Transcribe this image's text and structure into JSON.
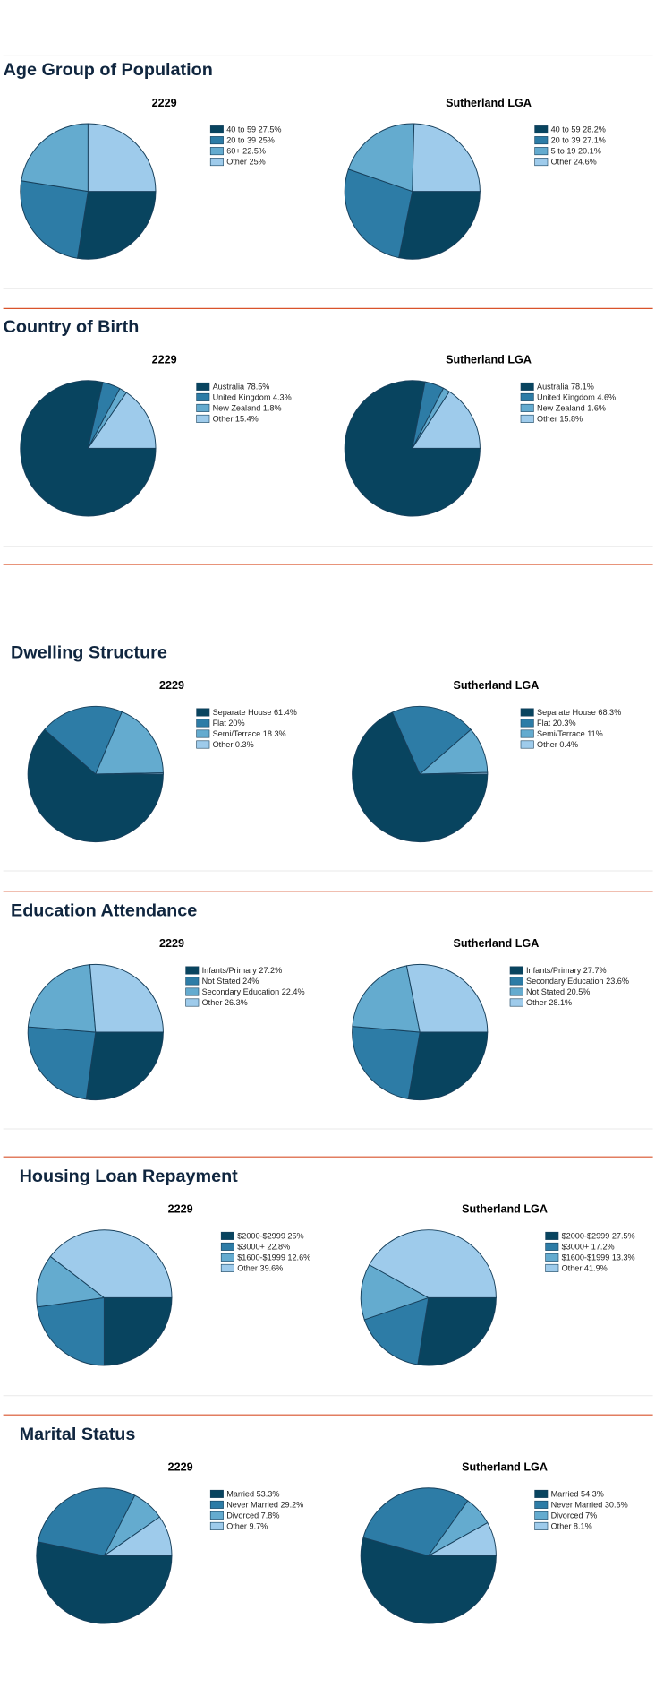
{
  "sections": [
    {
      "title": "Age Group of Population"
    },
    {
      "title": "Country of Birth"
    },
    {
      "title": "Dwelling Structure"
    },
    {
      "title": "Education Attendance"
    },
    {
      "title": "Housing Loan Repayment"
    },
    {
      "title": "Marital Status"
    }
  ],
  "chart_data": [
    {
      "type": "pie",
      "title": "2229",
      "categories": [
        "40 to 59",
        "20 to 39",
        "60+",
        "Other"
      ],
      "values": [
        27.5,
        25,
        22.5,
        25
      ],
      "value_labels": [
        "27.5%",
        "25%",
        "22.5%",
        "25%"
      ],
      "colors": [
        "#08445f",
        "#2d7ca6",
        "#64abcf",
        "#9ecbeb"
      ]
    },
    {
      "type": "pie",
      "title": "Sutherland LGA",
      "categories": [
        "40 to 59",
        "20 to 39",
        "5 to 19",
        "Other"
      ],
      "values": [
        28.2,
        27.1,
        20.1,
        24.6
      ],
      "value_labels": [
        "28.2%",
        "27.1%",
        "20.1%",
        "24.6%"
      ],
      "colors": [
        "#08445f",
        "#2d7ca6",
        "#64abcf",
        "#9ecbeb"
      ]
    },
    {
      "type": "pie",
      "title": "2229",
      "categories": [
        "Australia",
        "United Kingdom",
        "New Zealand",
        "Other"
      ],
      "values": [
        78.5,
        4.3,
        1.8,
        15.4
      ],
      "value_labels": [
        "78.5%",
        "4.3%",
        "1.8%",
        "15.4%"
      ],
      "colors": [
        "#08445f",
        "#2d7ca6",
        "#64abcf",
        "#9ecbeb"
      ]
    },
    {
      "type": "pie",
      "title": "Sutherland LGA",
      "categories": [
        "Australia",
        "United Kingdom",
        "New Zealand",
        "Other"
      ],
      "values": [
        78.1,
        4.6,
        1.6,
        15.8
      ],
      "value_labels": [
        "78.1%",
        "4.6%",
        "1.6%",
        "15.8%"
      ],
      "colors": [
        "#08445f",
        "#2d7ca6",
        "#64abcf",
        "#9ecbeb"
      ]
    },
    {
      "type": "pie",
      "title": "2229",
      "categories": [
        "Separate House",
        "Flat",
        "Semi/Terrace",
        "Other"
      ],
      "values": [
        61.4,
        20,
        18.3,
        0.3
      ],
      "value_labels": [
        "61.4%",
        "20%",
        "18.3%",
        "0.3%"
      ],
      "colors": [
        "#08445f",
        "#2d7ca6",
        "#64abcf",
        "#9ecbeb"
      ]
    },
    {
      "type": "pie",
      "title": "Sutherland LGA",
      "categories": [
        "Separate House",
        "Flat",
        "Semi/Terrace",
        "Other"
      ],
      "values": [
        68.3,
        20.3,
        11,
        0.4
      ],
      "value_labels": [
        "68.3%",
        "20.3%",
        "11%",
        "0.4%"
      ],
      "colors": [
        "#08445f",
        "#2d7ca6",
        "#64abcf",
        "#9ecbeb"
      ]
    },
    {
      "type": "pie",
      "title": "2229",
      "categories": [
        "Infants/Primary",
        "Not Stated",
        "Secondary Education",
        "Other"
      ],
      "values": [
        27.2,
        24,
        22.4,
        26.3
      ],
      "value_labels": [
        "27.2%",
        "24%",
        "22.4%",
        "26.3%"
      ],
      "colors": [
        "#08445f",
        "#2d7ca6",
        "#64abcf",
        "#9ecbeb"
      ]
    },
    {
      "type": "pie",
      "title": "Sutherland LGA",
      "categories": [
        "Infants/Primary",
        "Secondary Education",
        "Not Stated",
        "Other"
      ],
      "values": [
        27.7,
        23.6,
        20.5,
        28.1
      ],
      "value_labels": [
        "27.7%",
        "23.6%",
        "20.5%",
        "28.1%"
      ],
      "colors": [
        "#08445f",
        "#2d7ca6",
        "#64abcf",
        "#9ecbeb"
      ]
    },
    {
      "type": "pie",
      "title": "2229",
      "categories": [
        "$2000-$2999",
        "$3000+",
        "$1600-$1999",
        "Other"
      ],
      "values": [
        25,
        22.8,
        12.6,
        39.6
      ],
      "value_labels": [
        "25%",
        "22.8%",
        "12.6%",
        "39.6%"
      ],
      "colors": [
        "#08445f",
        "#2d7ca6",
        "#64abcf",
        "#9ecbeb"
      ]
    },
    {
      "type": "pie",
      "title": "Sutherland LGA",
      "categories": [
        "$2000-$2999",
        "$3000+",
        "$1600-$1999",
        "Other"
      ],
      "values": [
        27.5,
        17.2,
        13.3,
        41.9
      ],
      "value_labels": [
        "27.5%",
        "17.2%",
        "13.3%",
        "41.9%"
      ],
      "colors": [
        "#08445f",
        "#2d7ca6",
        "#64abcf",
        "#9ecbeb"
      ]
    },
    {
      "type": "pie",
      "title": "2229",
      "categories": [
        "Married",
        "Never Married",
        "Divorced",
        "Other"
      ],
      "values": [
        53.3,
        29.2,
        7.8,
        9.7
      ],
      "value_labels": [
        "53.3%",
        "29.2%",
        "7.8%",
        "9.7%"
      ],
      "colors": [
        "#08445f",
        "#2d7ca6",
        "#64abcf",
        "#9ecbeb"
      ]
    },
    {
      "type": "pie",
      "title": "Sutherland LGA",
      "categories": [
        "Married",
        "Never Married",
        "Divorced",
        "Other"
      ],
      "values": [
        54.3,
        30.6,
        7,
        8.1
      ],
      "value_labels": [
        "54.3%",
        "30.6%",
        "7%",
        "8.1%"
      ],
      "colors": [
        "#08445f",
        "#2d7ca6",
        "#64abcf",
        "#9ecbeb"
      ]
    }
  ]
}
